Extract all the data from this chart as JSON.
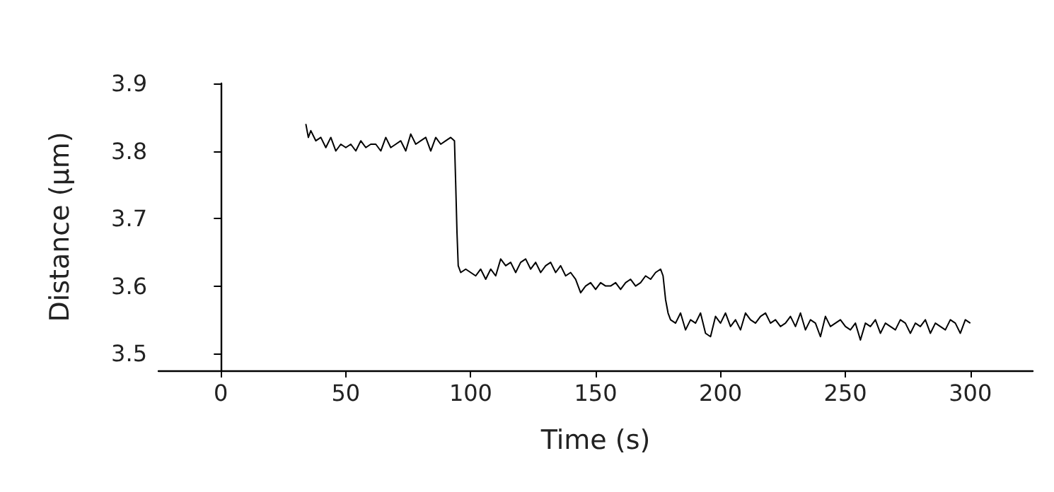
{
  "chart_data": {
    "type": "line",
    "xlabel": "Time (s)",
    "ylabel": "Distance (μm)",
    "xlim": [
      -25,
      325
    ],
    "xticks": [
      0,
      50,
      100,
      150,
      200,
      250,
      300
    ],
    "ylim": [
      3.475,
      3.9
    ],
    "yticks": [
      3.5,
      3.6,
      3.7,
      3.8,
      3.9
    ],
    "marker": "none",
    "line_style": "solid",
    "series": [
      {
        "color": "#000000",
        "x": [
          34,
          35,
          36,
          38,
          40,
          42,
          44,
          46,
          48,
          50,
          52,
          54,
          56,
          58,
          60,
          62,
          64,
          66,
          68,
          70,
          72,
          74,
          76,
          78,
          80,
          82,
          84,
          86,
          88,
          90,
          92,
          93.5,
          94,
          94.5,
          95,
          96,
          98,
          100,
          102,
          104,
          106,
          108,
          110,
          112,
          114,
          116,
          118,
          120,
          122,
          124,
          126,
          128,
          130,
          132,
          134,
          136,
          138,
          140,
          142,
          144,
          146,
          148,
          150,
          152,
          154,
          156,
          158,
          160,
          162,
          164,
          166,
          168,
          170,
          172,
          174,
          176,
          177,
          178,
          179,
          180,
          182,
          184,
          186,
          188,
          190,
          192,
          194,
          196,
          198,
          200,
          202,
          204,
          206,
          208,
          210,
          212,
          214,
          216,
          218,
          220,
          222,
          224,
          226,
          228,
          230,
          232,
          234,
          236,
          238,
          240,
          242,
          244,
          246,
          248,
          250,
          252,
          254,
          256,
          258,
          260,
          262,
          264,
          266,
          268,
          270,
          272,
          274,
          276,
          278,
          280,
          282,
          284,
          286,
          288,
          290,
          292,
          294,
          296,
          298,
          300
        ],
        "values": [
          3.84,
          3.82,
          3.83,
          3.815,
          3.82,
          3.805,
          3.82,
          3.8,
          3.81,
          3.805,
          3.81,
          3.8,
          3.815,
          3.805,
          3.81,
          3.81,
          3.8,
          3.82,
          3.805,
          3.81,
          3.815,
          3.8,
          3.825,
          3.81,
          3.815,
          3.82,
          3.8,
          3.82,
          3.81,
          3.815,
          3.82,
          3.815,
          3.75,
          3.68,
          3.63,
          3.62,
          3.625,
          3.62,
          3.615,
          3.625,
          3.61,
          3.625,
          3.615,
          3.64,
          3.63,
          3.635,
          3.62,
          3.635,
          3.64,
          3.625,
          3.635,
          3.62,
          3.63,
          3.635,
          3.62,
          3.63,
          3.615,
          3.62,
          3.61,
          3.59,
          3.6,
          3.605,
          3.595,
          3.605,
          3.6,
          3.6,
          3.605,
          3.595,
          3.605,
          3.61,
          3.6,
          3.605,
          3.615,
          3.61,
          3.62,
          3.625,
          3.615,
          3.58,
          3.56,
          3.55,
          3.545,
          3.56,
          3.535,
          3.55,
          3.545,
          3.56,
          3.53,
          3.525,
          3.555,
          3.545,
          3.56,
          3.54,
          3.55,
          3.535,
          3.56,
          3.55,
          3.545,
          3.555,
          3.56,
          3.545,
          3.55,
          3.54,
          3.545,
          3.555,
          3.54,
          3.56,
          3.535,
          3.55,
          3.545,
          3.525,
          3.555,
          3.54,
          3.545,
          3.55,
          3.54,
          3.535,
          3.545,
          3.52,
          3.545,
          3.54,
          3.55,
          3.53,
          3.545,
          3.54,
          3.535,
          3.55,
          3.545,
          3.53,
          3.545,
          3.54,
          3.55,
          3.53,
          3.545,
          3.54,
          3.535,
          3.55,
          3.545,
          3.53,
          3.55,
          3.545
        ]
      }
    ]
  }
}
